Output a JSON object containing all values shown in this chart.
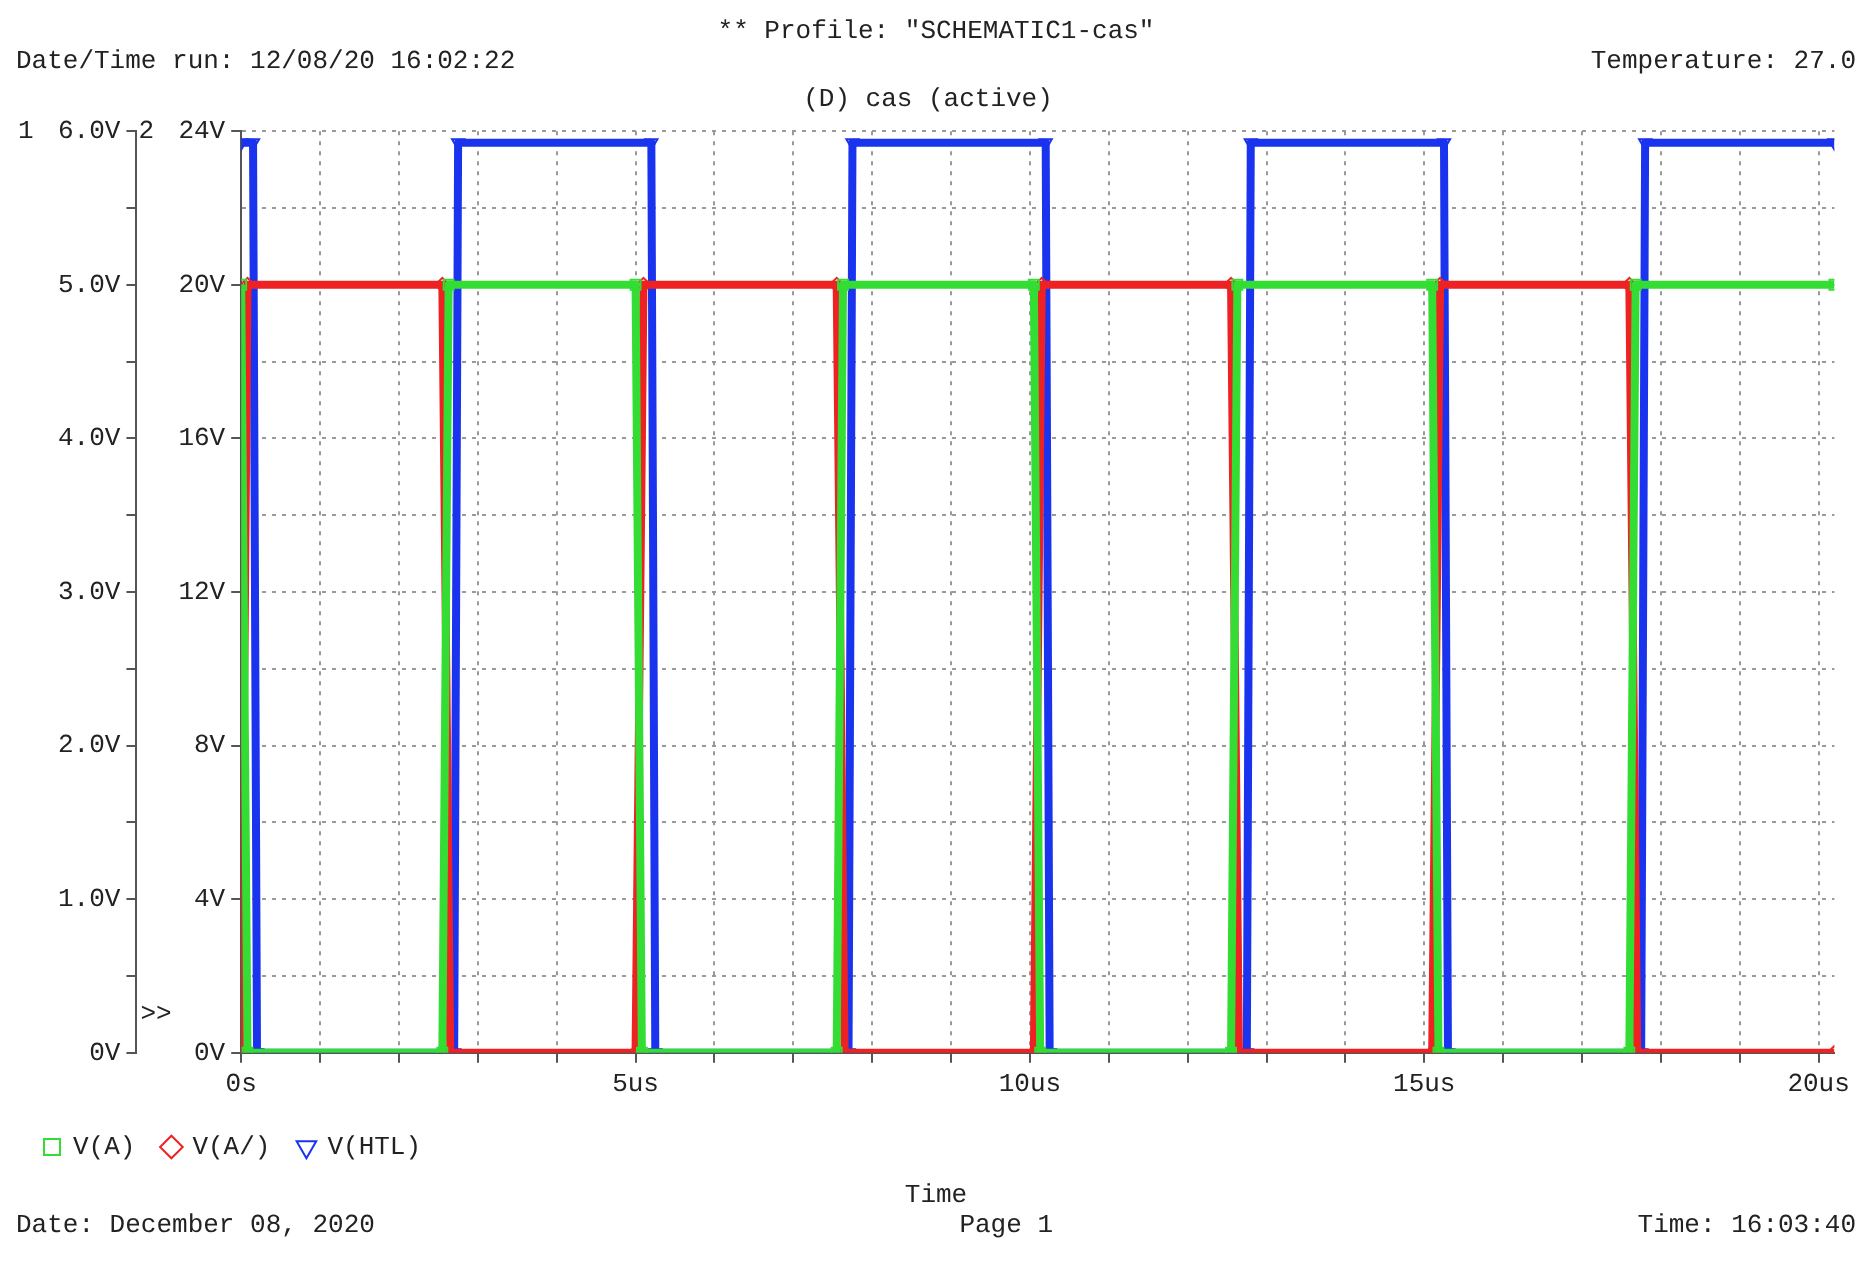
{
  "chart_data": {
    "type": "line",
    "title": "** Profile: \"SCHEMATIC1-cas\"",
    "subtitle": "(D) cas (active)",
    "xlabel": "Time",
    "ylabel": "1",
    "y2label": "2",
    "annotations": [
      "Date/Time run: 12/08/20 16:02:22",
      "Temperature: 27.0",
      "Date: December 08, 2020",
      "Page 1",
      "Time: 16:03:40",
      ">>"
    ],
    "xlim": [
      0,
      20.2
    ],
    "xticks": [
      {
        "value": 0,
        "label": "0s"
      },
      {
        "value": 1,
        "label": null
      },
      {
        "value": 2,
        "label": null
      },
      {
        "value": 3,
        "label": null
      },
      {
        "value": 4,
        "label": null
      },
      {
        "value": 5,
        "label": "5us"
      },
      {
        "value": 6,
        "label": null
      },
      {
        "value": 7,
        "label": null
      },
      {
        "value": 8,
        "label": null
      },
      {
        "value": 9,
        "label": null
      },
      {
        "value": 10,
        "label": "10us"
      },
      {
        "value": 11,
        "label": null
      },
      {
        "value": 12,
        "label": null
      },
      {
        "value": 13,
        "label": null
      },
      {
        "value": 14,
        "label": null
      },
      {
        "value": 15,
        "label": "15us"
      },
      {
        "value": 16,
        "label": null
      },
      {
        "value": 17,
        "label": null
      },
      {
        "value": 18,
        "label": null
      },
      {
        "value": 19,
        "label": null
      },
      {
        "value": 20,
        "label": "20us"
      }
    ],
    "ylim": [
      0,
      6
    ],
    "yticks": [
      {
        "value": 0,
        "label": "0V"
      },
      {
        "value": 0.5,
        "label": null
      },
      {
        "value": 1,
        "label": "1.0V"
      },
      {
        "value": 1.5,
        "label": null
      },
      {
        "value": 2,
        "label": "2.0V"
      },
      {
        "value": 2.5,
        "label": null
      },
      {
        "value": 3,
        "label": "3.0V"
      },
      {
        "value": 3.5,
        "label": null
      },
      {
        "value": 4,
        "label": "4.0V"
      },
      {
        "value": 4.5,
        "label": null
      },
      {
        "value": 5,
        "label": "5.0V"
      },
      {
        "value": 5.5,
        "label": null
      },
      {
        "value": 6,
        "label": "6.0V"
      }
    ],
    "y2lim": [
      0,
      24
    ],
    "y2ticks": [
      {
        "value": 0,
        "label": "0V"
      },
      {
        "value": 4,
        "label": "4V"
      },
      {
        "value": 8,
        "label": "8V"
      },
      {
        "value": 12,
        "label": "12V"
      },
      {
        "value": 16,
        "label": "16V"
      },
      {
        "value": 20,
        "label": "20V"
      },
      {
        "value": 24,
        "label": "24V"
      }
    ],
    "grid": true,
    "legend": "bottom left",
    "line_style": "solid",
    "series": [
      {
        "name": "V(A)",
        "color": "#33dd33",
        "marker": "square",
        "x": [
          0,
          0.08,
          2.55,
          2.63,
          5.0,
          5.08,
          7.55,
          7.63,
          10.05,
          10.13,
          12.55,
          12.63,
          15.1,
          15.18,
          17.6,
          17.68,
          20.2
        ],
        "values": [
          5,
          0,
          0,
          5,
          5,
          0,
          0,
          5,
          5,
          0,
          0,
          5,
          5,
          0,
          0,
          5,
          5
        ]
      },
      {
        "name": "V(A/)",
        "color": "#ee2222",
        "marker": "diamond",
        "x": [
          0,
          0.08,
          2.55,
          2.65,
          5.0,
          5.1,
          7.55,
          7.65,
          10.05,
          10.15,
          12.55,
          12.65,
          15.1,
          15.2,
          17.6,
          17.7,
          20.2
        ],
        "values": [
          0,
          5,
          5,
          0,
          0,
          5,
          5,
          0,
          0,
          5,
          5,
          0,
          0,
          5,
          5,
          0,
          0
        ]
      },
      {
        "name": "V(HTL)",
        "color": "#1a33ee",
        "marker": "triangle",
        "axis": "y2",
        "x": [
          0,
          0.15,
          0.2,
          2.7,
          2.75,
          5.2,
          5.25,
          7.7,
          7.75,
          10.2,
          10.25,
          12.75,
          12.8,
          15.25,
          15.3,
          17.75,
          17.8,
          20.2
        ],
        "values": [
          23.7,
          23.7,
          0,
          0,
          23.7,
          23.7,
          0,
          0,
          23.7,
          23.7,
          0,
          0,
          23.7,
          23.7,
          0,
          0,
          23.7,
          23.7
        ]
      }
    ]
  }
}
